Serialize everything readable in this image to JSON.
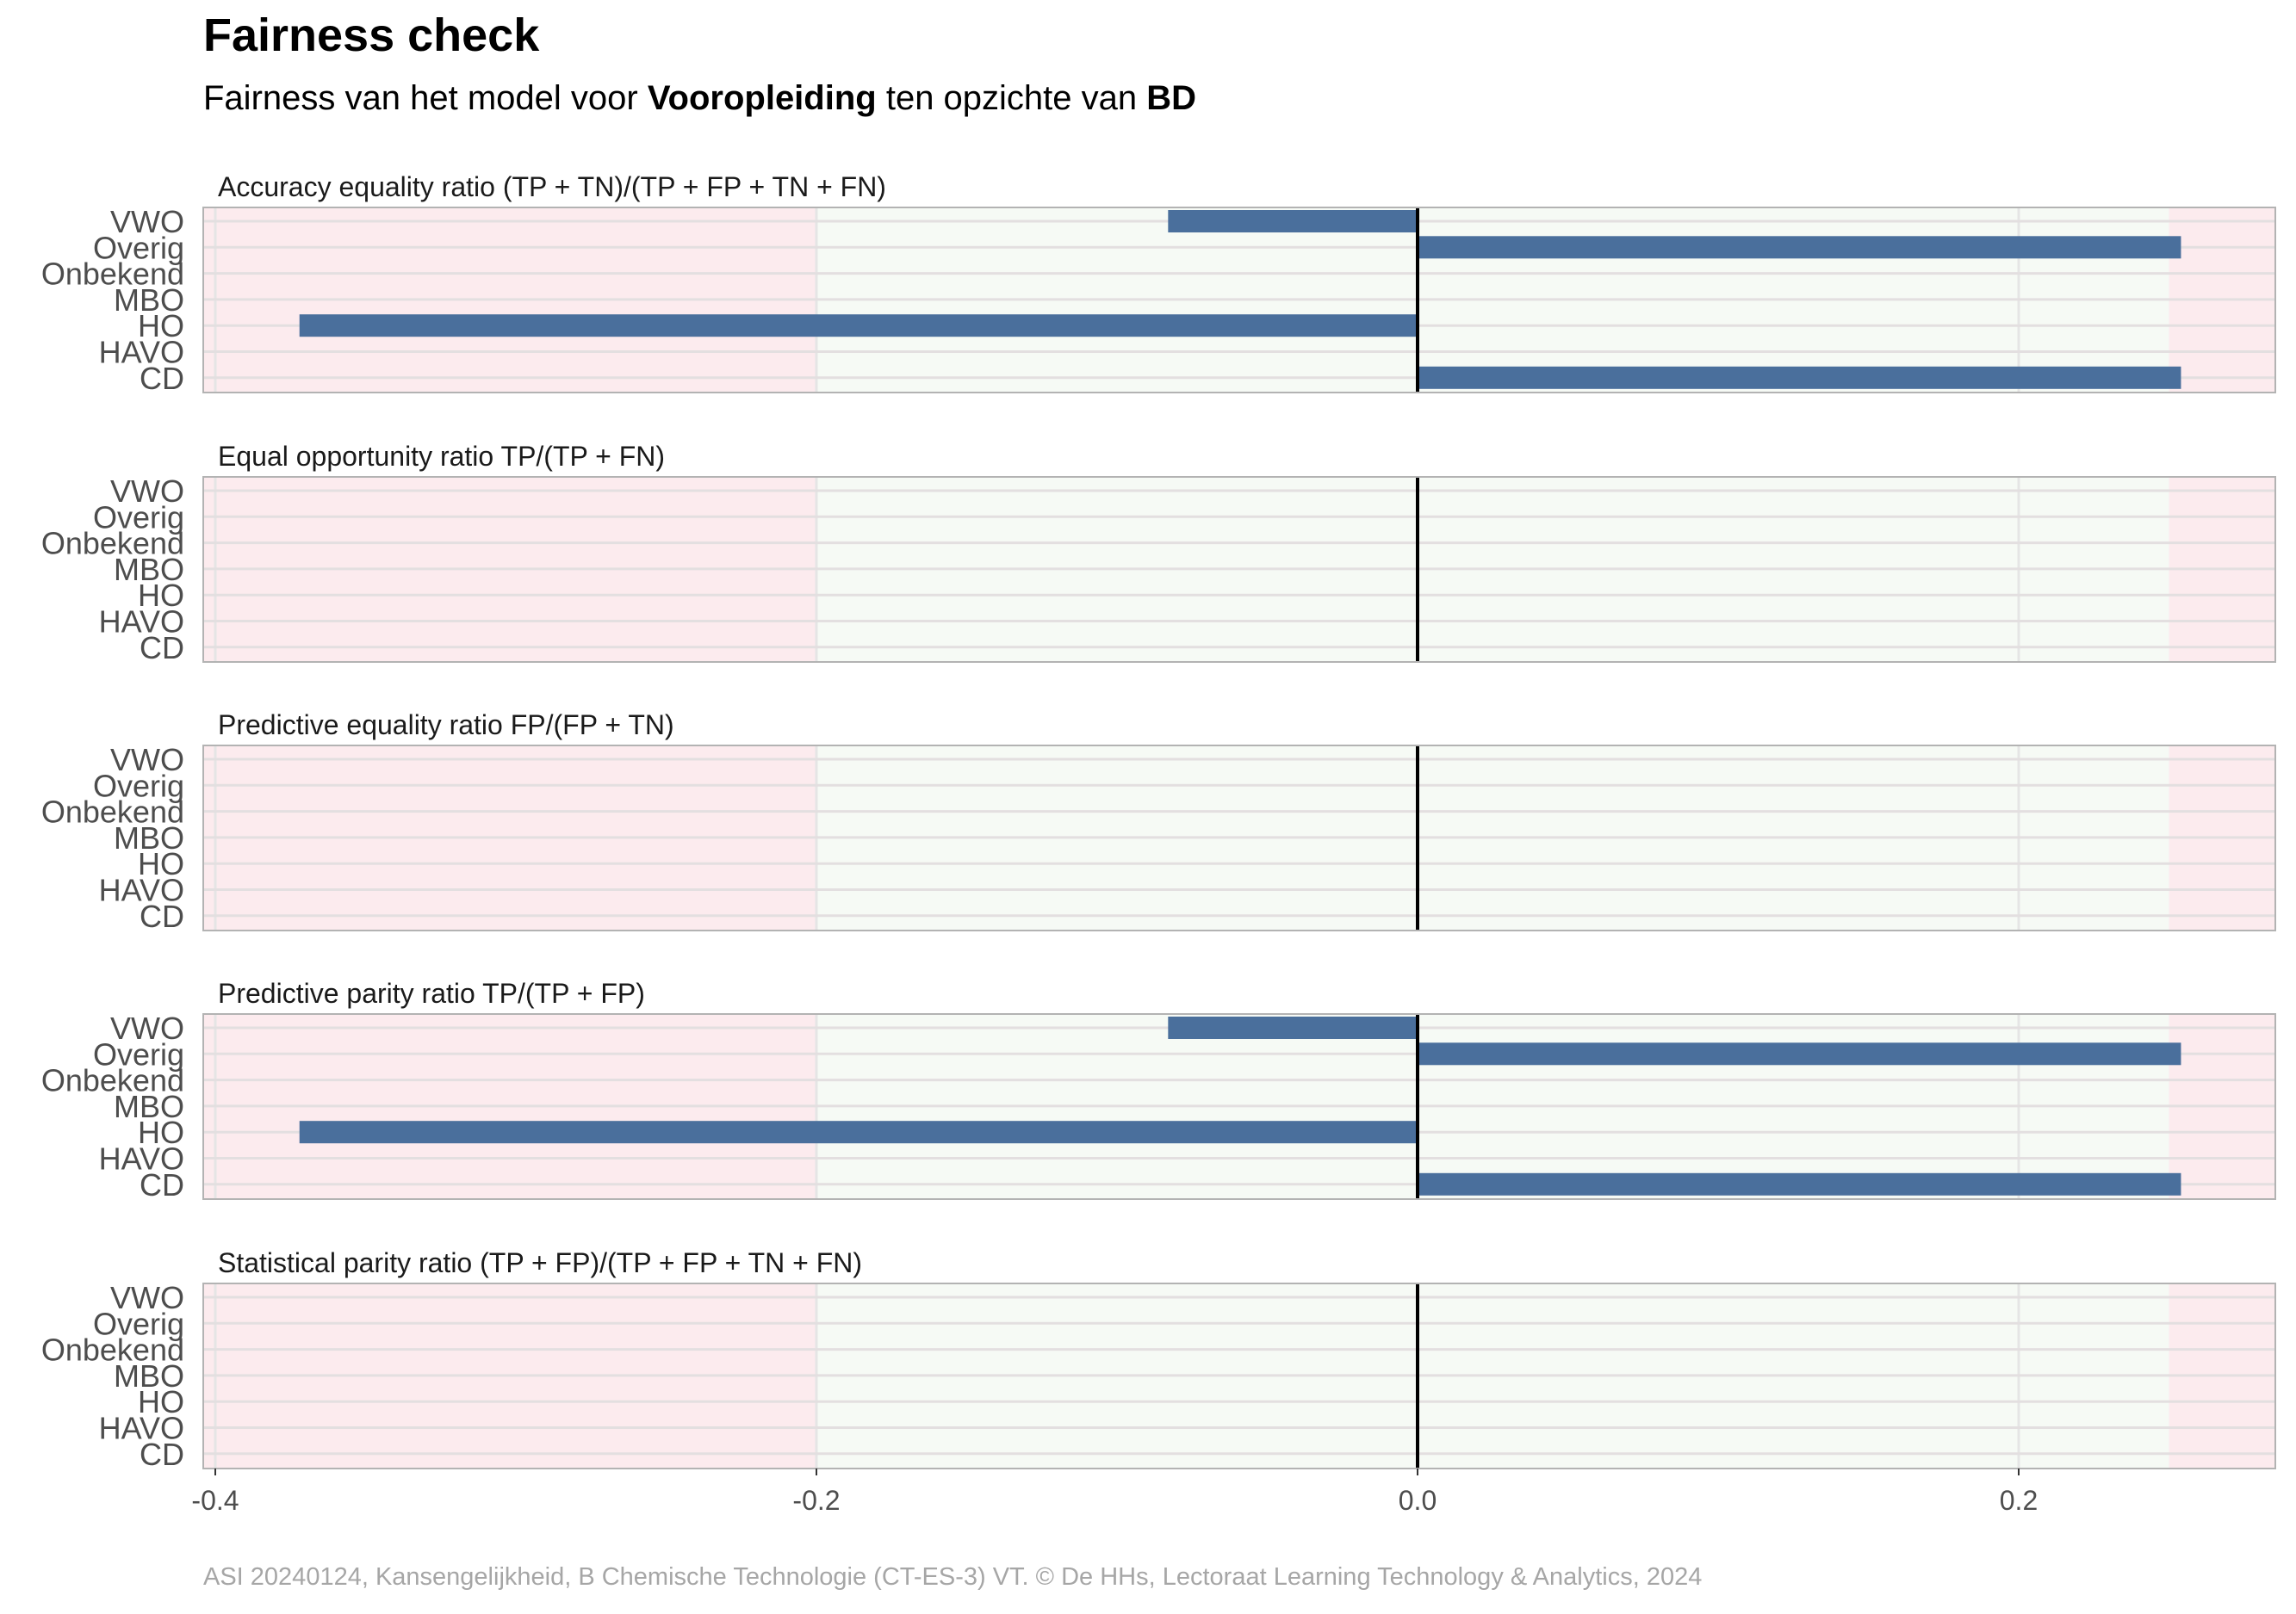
{
  "title": "Fairness check",
  "subtitle": {
    "prefix": "Fairness van het model voor ",
    "variable": "Vooropleiding",
    "middle": " ten opzichte van ",
    "reference": "BD"
  },
  "caption": "ASI 20240124, Kansengelijkheid, B Chemische Technologie (CT-ES-3) VT. © De HHs, Lectoraat Learning Technology & Analytics, 2024",
  "colors": {
    "bar": "#4a6f9c",
    "fair_zone": "#f6faf5",
    "unfair_zone": "#fcebee",
    "zero_line": "#000000",
    "panel_border": "#b3b3b3",
    "caption": "#a6a6a6"
  },
  "chart_data": {
    "type": "bar",
    "orientation": "horizontal",
    "xlim": [
      -0.4,
      0.28
    ],
    "x_ticks": [
      -0.4,
      -0.2,
      0.0,
      0.2
    ],
    "x_tick_labels": [
      "-0.4",
      "-0.2",
      "0.0",
      "0.2"
    ],
    "fair_range": [
      -0.2,
      0.25
    ],
    "categories": [
      "VWO",
      "Overig",
      "Onbekend",
      "MBO",
      "HO",
      "HAVO",
      "CD"
    ],
    "panels": [
      {
        "metric": "Accuracy equality ratio",
        "formula": "(TP + TN)/(TP + FP + TN + FN)",
        "values": [
          -0.083,
          0.254,
          null,
          null,
          -0.372,
          null,
          0.254
        ]
      },
      {
        "metric": "Equal opportunity ratio",
        "formula": "TP/(TP + FN)",
        "values": [
          null,
          null,
          null,
          null,
          null,
          null,
          null
        ]
      },
      {
        "metric": "Predictive equality ratio",
        "formula": "FP/(FP + TN)",
        "values": [
          null,
          null,
          null,
          null,
          null,
          null,
          null
        ]
      },
      {
        "metric": "Predictive parity ratio",
        "formula": "TP/(TP + FP)",
        "values": [
          -0.083,
          0.254,
          null,
          null,
          -0.372,
          null,
          0.254
        ]
      },
      {
        "metric": "Statistical parity ratio",
        "formula": "(TP + FP)/(TP + FP + TN + FN)",
        "values": [
          null,
          null,
          null,
          null,
          null,
          null,
          null
        ]
      }
    ]
  }
}
